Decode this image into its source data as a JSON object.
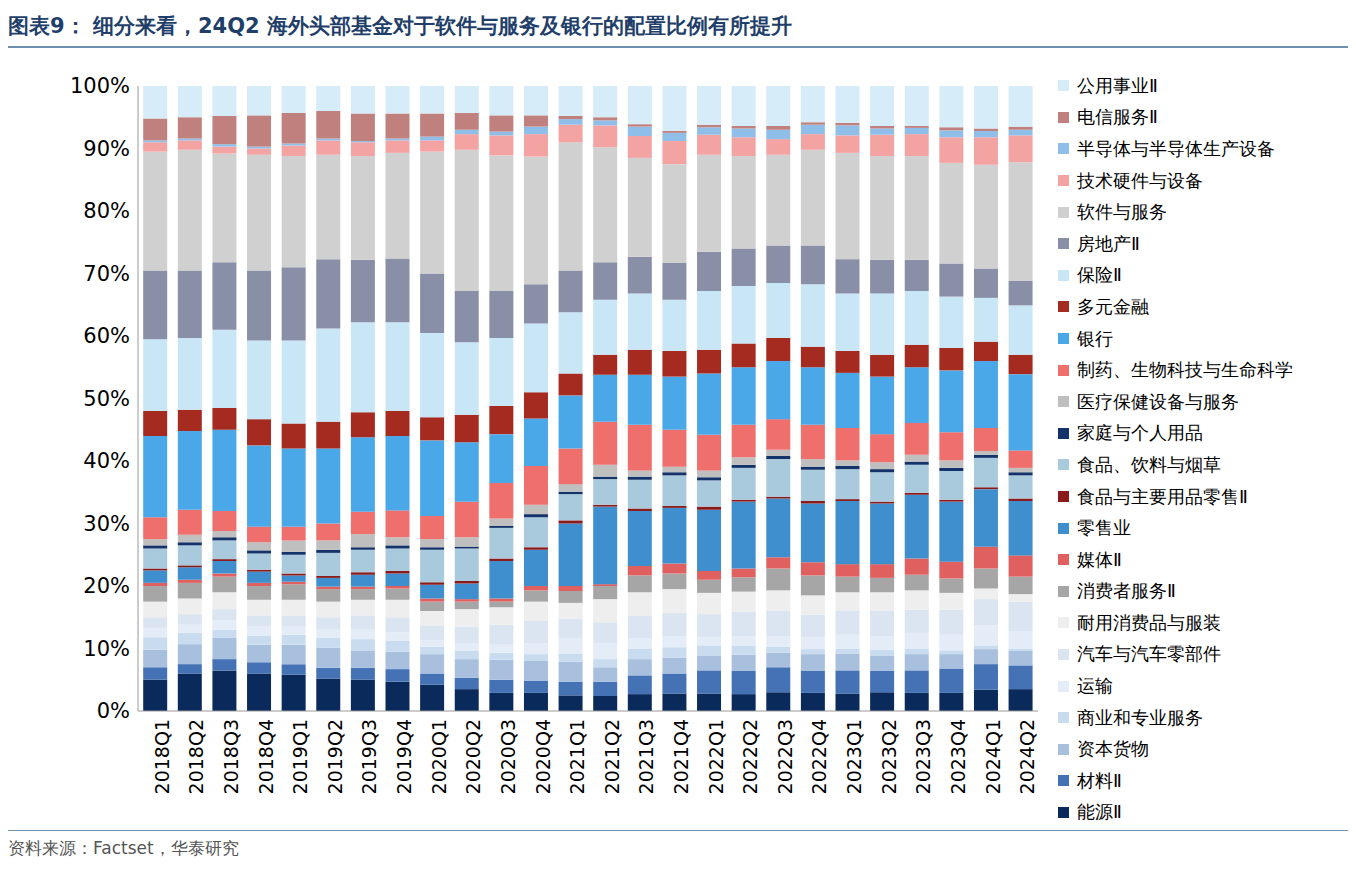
{
  "chart_data": {
    "type": "bar",
    "stacked": true,
    "grid": false,
    "legend": "right",
    "title": "图表9： 细分来看，24Q2 海外头部基金对于软件与服务及银行的配置比例有所提升",
    "source": "资料来源：Factset，华泰研究",
    "categories": [
      "2018Q1",
      "2018Q2",
      "2018Q3",
      "2018Q4",
      "2019Q1",
      "2019Q2",
      "2019Q3",
      "2019Q4",
      "2020Q1",
      "2020Q2",
      "2020Q3",
      "2020Q4",
      "2021Q1",
      "2021Q2",
      "2021Q3",
      "2021Q4",
      "2022Q1",
      "2022Q2",
      "2022Q3",
      "2022Q4",
      "2023Q1",
      "2023Q2",
      "2023Q3",
      "2023Q4",
      "2024Q1",
      "2024Q2"
    ],
    "ylim": [
      0,
      100
    ],
    "yticks": [
      {
        "value": 0,
        "label": "0%"
      },
      {
        "value": 10,
        "label": "10%"
      },
      {
        "value": 20,
        "label": "20%"
      },
      {
        "value": 30,
        "label": "30%"
      },
      {
        "value": 40,
        "label": "40%"
      },
      {
        "value": 50,
        "label": "50%"
      },
      {
        "value": 60,
        "label": "60%"
      },
      {
        "value": 70,
        "label": "70%"
      },
      {
        "value": 80,
        "label": "80%"
      },
      {
        "value": 90,
        "label": "90%"
      },
      {
        "value": 100,
        "label": "100%"
      }
    ],
    "series": [
      {
        "name": "能源Ⅱ",
        "color": "#0b2a5c",
        "values": [
          5.0,
          6.0,
          6.5,
          6.0,
          5.8,
          5.2,
          5.0,
          4.7,
          4.2,
          3.5,
          2.9,
          2.9,
          2.5,
          2.4,
          2.7,
          2.8,
          2.8,
          2.7,
          3.0,
          2.9,
          2.8,
          3.0,
          2.9,
          2.9,
          3.4,
          3.5
        ]
      },
      {
        "name": "材料Ⅱ",
        "color": "#4472b4",
        "values": [
          2.0,
          1.5,
          1.8,
          1.8,
          1.7,
          1.7,
          1.9,
          2.0,
          1.8,
          1.8,
          2.1,
          1.9,
          2.2,
          2.3,
          3.0,
          3.2,
          3.7,
          3.7,
          4.0,
          3.5,
          3.7,
          3.4,
          3.6,
          3.9,
          4.1,
          3.8
        ]
      },
      {
        "name": "资本货物",
        "color": "#a8c0de",
        "values": [
          2.8,
          3.2,
          3.4,
          2.8,
          3.1,
          3.2,
          2.7,
          2.8,
          3.1,
          3.0,
          3.2,
          3.2,
          3.2,
          2.3,
          2.6,
          2.5,
          2.3,
          2.6,
          2.3,
          2.7,
          2.7,
          2.4,
          2.6,
          2.3,
          2.4,
          2.3
        ]
      },
      {
        "name": "商业和专业服务",
        "color": "#c9dcef",
        "values": [
          2.0,
          1.8,
          1.3,
          1.4,
          1.6,
          1.6,
          1.9,
          1.7,
          1.2,
          1.3,
          1.1,
          1.1,
          1.3,
          1.3,
          1.7,
          1.7,
          1.7,
          1.4,
          1.0,
          0.8,
          0.8,
          1.0,
          0.9,
          0.6,
          0.6,
          0.4
        ]
      },
      {
        "name": "运输",
        "color": "#e3ecf7",
        "values": [
          1.5,
          1.3,
          1.5,
          1.5,
          1.3,
          1.3,
          1.5,
          1.4,
          1.0,
          1.2,
          1.3,
          1.7,
          2.5,
          2.6,
          1.6,
          1.8,
          1.3,
          1.6,
          1.7,
          1.9,
          2.2,
          2.2,
          2.5,
          2.5,
          3.2,
          2.8
        ]
      },
      {
        "name": "汽车与汽车零部件",
        "color": "#dbe4f1",
        "values": [
          1.7,
          1.7,
          1.8,
          1.8,
          1.8,
          2.0,
          2.3,
          2.4,
          2.3,
          2.7,
          3.2,
          3.7,
          3.1,
          3.3,
          3.7,
          3.7,
          3.7,
          3.9,
          4.0,
          3.6,
          3.9,
          4.0,
          3.7,
          4.0,
          4.2,
          4.7
        ]
      },
      {
        "name": "耐用消费品与服装",
        "color": "#eeeeee",
        "values": [
          2.5,
          2.5,
          2.7,
          2.5,
          2.5,
          2.5,
          2.5,
          2.8,
          2.4,
          2.8,
          2.8,
          3.0,
          2.5,
          3.7,
          3.7,
          3.8,
          3.4,
          3.2,
          3.3,
          3.1,
          2.9,
          3.0,
          3.1,
          2.7,
          1.7,
          1.2
        ]
      },
      {
        "name": "消费者服务Ⅱ",
        "color": "#a6a6a6",
        "values": [
          2.5,
          2.5,
          2.5,
          2.2,
          2.5,
          2.0,
          1.7,
          1.8,
          1.5,
          1.2,
          0.9,
          1.8,
          1.9,
          2.1,
          2.7,
          2.5,
          2.1,
          2.3,
          3.5,
          3.2,
          2.5,
          2.3,
          2.5,
          2.3,
          3.2,
          2.8
        ]
      },
      {
        "name": "媒体Ⅱ",
        "color": "#e06060",
        "values": [
          0.5,
          0.5,
          0.5,
          0.5,
          0.4,
          0.4,
          0.4,
          0.4,
          0.5,
          0.4,
          0.5,
          0.7,
          0.8,
          0.3,
          1.5,
          1.6,
          1.4,
          1.4,
          1.8,
          2.1,
          2.0,
          2.2,
          2.6,
          2.7,
          3.5,
          3.4
        ]
      },
      {
        "name": "零售业",
        "color": "#3f8fcf",
        "values": [
          2.0,
          2.0,
          2.0,
          1.8,
          1.0,
          1.4,
          1.9,
          2.0,
          2.2,
          2.5,
          6.0,
          5.8,
          10.0,
          12.4,
          8.8,
          8.9,
          9.8,
          10.7,
          9.4,
          9.4,
          10.1,
          9.7,
          10.2,
          9.6,
          9.2,
          8.7
        ]
      },
      {
        "name": "食品与主要用品零售Ⅱ",
        "color": "#8b1a1a",
        "values": [
          0.3,
          0.3,
          0.3,
          0.3,
          0.3,
          0.3,
          0.4,
          0.4,
          0.4,
          0.4,
          0.4,
          0.4,
          0.5,
          0.3,
          0.4,
          0.3,
          0.5,
          0.3,
          0.3,
          0.4,
          0.3,
          0.3,
          0.3,
          0.3,
          0.3,
          0.4
        ]
      },
      {
        "name": "食品、饮料与烟草",
        "color": "#a9c9dc",
        "values": [
          3.2,
          3.2,
          3.0,
          2.6,
          3.0,
          3.7,
          3.6,
          3.6,
          5.2,
          5.2,
          4.9,
          4.8,
          4.2,
          4.1,
          4.6,
          4.9,
          4.2,
          5.1,
          6.0,
          5.0,
          4.8,
          4.7,
          4.5,
          4.6,
          4.7,
          3.7
        ]
      },
      {
        "name": "家庭与个人用品",
        "color": "#14336b",
        "values": [
          0.5,
          0.5,
          0.5,
          0.5,
          0.5,
          0.5,
          0.4,
          0.5,
          0.4,
          0.3,
          0.3,
          0.5,
          0.4,
          0.4,
          0.5,
          0.5,
          0.5,
          0.5,
          0.5,
          0.5,
          0.5,
          0.5,
          0.5,
          0.5,
          0.5,
          0.5
        ]
      },
      {
        "name": "医疗保健设备与服务",
        "color": "#bfbfbf",
        "values": [
          1.0,
          1.2,
          1.0,
          1.3,
          1.8,
          1.5,
          2.1,
          1.3,
          1.3,
          1.5,
          1.2,
          1.5,
          1.2,
          1.9,
          1.0,
          0.9,
          1.1,
          1.2,
          1.0,
          1.2,
          0.9,
          1.1,
          1.1,
          1.2,
          0.6,
          0.7
        ]
      },
      {
        "name": "制药、生物科技与生命科学",
        "color": "#ef6f6c",
        "values": [
          3.5,
          4.0,
          3.2,
          2.5,
          2.2,
          2.7,
          3.6,
          4.3,
          3.7,
          5.7,
          5.7,
          6.2,
          5.7,
          6.9,
          7.3,
          5.9,
          5.7,
          5.2,
          4.9,
          5.5,
          5.2,
          4.5,
          5.1,
          4.5,
          3.7,
          2.8
        ]
      },
      {
        "name": "银行",
        "color": "#4aa8e8",
        "values": [
          13.0,
          12.6,
          13.0,
          13.0,
          12.5,
          12.0,
          11.9,
          11.9,
          12.1,
          9.5,
          7.8,
          7.6,
          8.5,
          7.5,
          8.0,
          8.5,
          9.8,
          9.2,
          9.3,
          9.2,
          8.8,
          9.2,
          8.9,
          9.9,
          10.7,
          12.2
        ]
      },
      {
        "name": "多元金融",
        "color": "#a52a1f",
        "values": [
          4.0,
          3.4,
          3.5,
          4.2,
          4.0,
          4.3,
          4.0,
          4.0,
          3.7,
          4.4,
          4.5,
          4.2,
          3.5,
          3.2,
          4.0,
          4.1,
          3.8,
          3.8,
          3.7,
          3.3,
          3.5,
          3.5,
          3.6,
          3.6,
          3.1,
          3.1
        ]
      },
      {
        "name": "保险Ⅱ",
        "color": "#c9e6f7",
        "values": [
          11.5,
          11.5,
          12.5,
          12.6,
          13.3,
          14.9,
          14.4,
          14.2,
          13.5,
          11.6,
          10.9,
          11.0,
          9.8,
          8.8,
          9.0,
          8.2,
          9.4,
          9.2,
          8.8,
          10.0,
          9.2,
          9.8,
          8.6,
          8.2,
          7.0,
          7.9
        ]
      },
      {
        "name": "房地产Ⅱ",
        "color": "#8a8fa8",
        "values": [
          11.0,
          10.8,
          10.8,
          11.2,
          11.7,
          11.1,
          10.0,
          10.2,
          9.5,
          8.2,
          7.5,
          6.3,
          6.7,
          6.0,
          5.9,
          5.9,
          6.3,
          6.0,
          6.0,
          6.2,
          5.5,
          5.4,
          5.0,
          5.3,
          4.7,
          3.9
        ]
      },
      {
        "name": "软件与服务",
        "color": "#d0d0d0",
        "values": [
          19.0,
          19.3,
          17.4,
          18.5,
          17.8,
          16.7,
          16.6,
          16.9,
          19.5,
          22.6,
          21.7,
          20.4,
          20.5,
          18.4,
          15.8,
          15.8,
          15.5,
          14.8,
          14.5,
          15.3,
          17.0,
          16.6,
          16.6,
          16.1,
          16.6,
          19.0
        ]
      },
      {
        "name": "技术硬件与设备",
        "color": "#f4a3a3",
        "values": [
          1.5,
          1.5,
          1.1,
          1.0,
          1.7,
          2.3,
          2.2,
          2.0,
          1.8,
          2.5,
          3.2,
          3.6,
          2.8,
          3.5,
          3.5,
          3.7,
          3.2,
          3.0,
          2.5,
          2.5,
          2.8,
          3.4,
          3.5,
          4.1,
          4.4,
          4.3
        ]
      },
      {
        "name": "半导体与半导体生产设备",
        "color": "#8fbfe8",
        "values": [
          0.3,
          0.3,
          0.4,
          0.3,
          0.3,
          0.3,
          0.2,
          0.3,
          0.6,
          0.7,
          0.6,
          1.2,
          0.9,
          0.8,
          1.5,
          1.3,
          1.2,
          1.4,
          1.5,
          1.5,
          1.6,
          1.0,
          1.0,
          1.1,
          1.0,
          0.9
        ]
      },
      {
        "name": "电信服务Ⅱ",
        "color": "#c0807e",
        "values": [
          3.5,
          3.4,
          4.5,
          5.0,
          4.9,
          4.4,
          4.4,
          4.0,
          3.7,
          2.7,
          2.6,
          1.8,
          0.5,
          0.5,
          0.4,
          0.3,
          0.4,
          0.4,
          0.6,
          0.4,
          0.4,
          0.4,
          0.3,
          0.5,
          0.4,
          0.5
        ]
      },
      {
        "name": "公用事业Ⅱ",
        "color": "#d6ecf8",
        "values": [
          5.2,
          5.0,
          4.8,
          4.7,
          4.3,
          4.0,
          4.4,
          4.4,
          4.4,
          4.3,
          4.7,
          4.7,
          4.8,
          5.0,
          6.1,
          7.2,
          6.2,
          6.4,
          6.4,
          5.8,
          5.9,
          6.4,
          6.4,
          6.6,
          6.8,
          6.5
        ]
      }
    ]
  }
}
